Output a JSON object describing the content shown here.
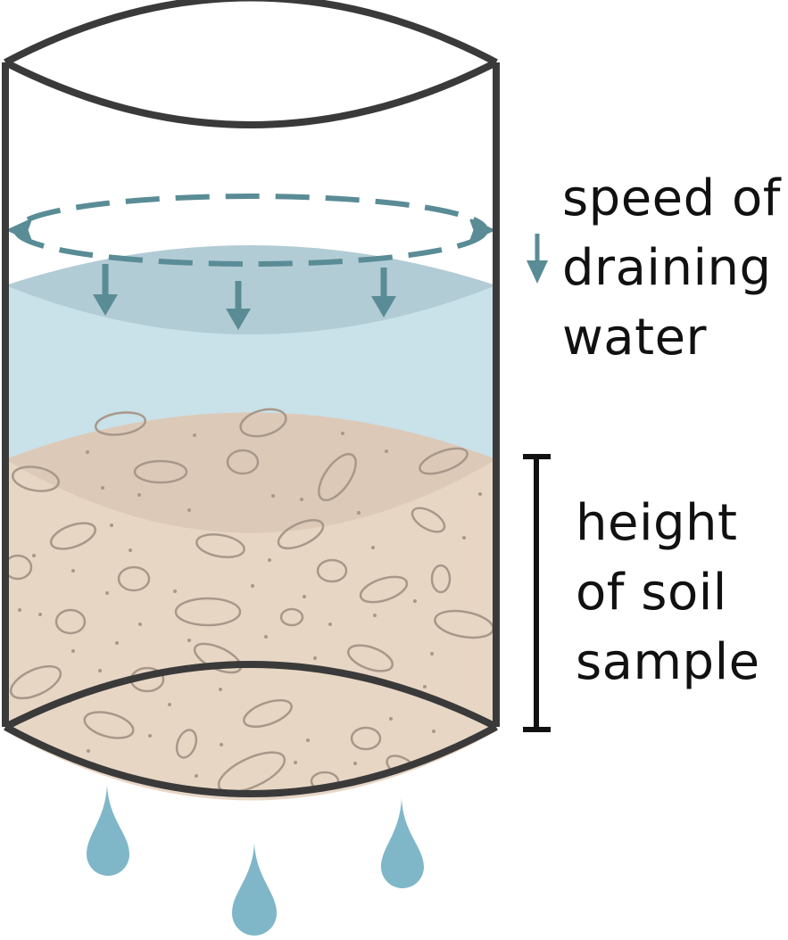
{
  "labels": {
    "speed": [
      "speed of",
      "draining",
      "water"
    ],
    "height": [
      "height",
      "of soil",
      "sample"
    ]
  },
  "colors": {
    "outline": "#3a3a3a",
    "water": "#c9e1e9",
    "water_surface": "#b2ccd5",
    "soil": "#e8d6c5",
    "soil_shadow": "#dcc9b8",
    "pebble_outline": "#a8988a",
    "dashed_arrow": "#5a8c96",
    "drop": "#7fb7c9",
    "bracket": "#111111"
  },
  "icons": [
    "dashed-ellipse-arrow-icon",
    "down-arrow-icon",
    "water-drop-icon",
    "height-bracket-icon"
  ]
}
